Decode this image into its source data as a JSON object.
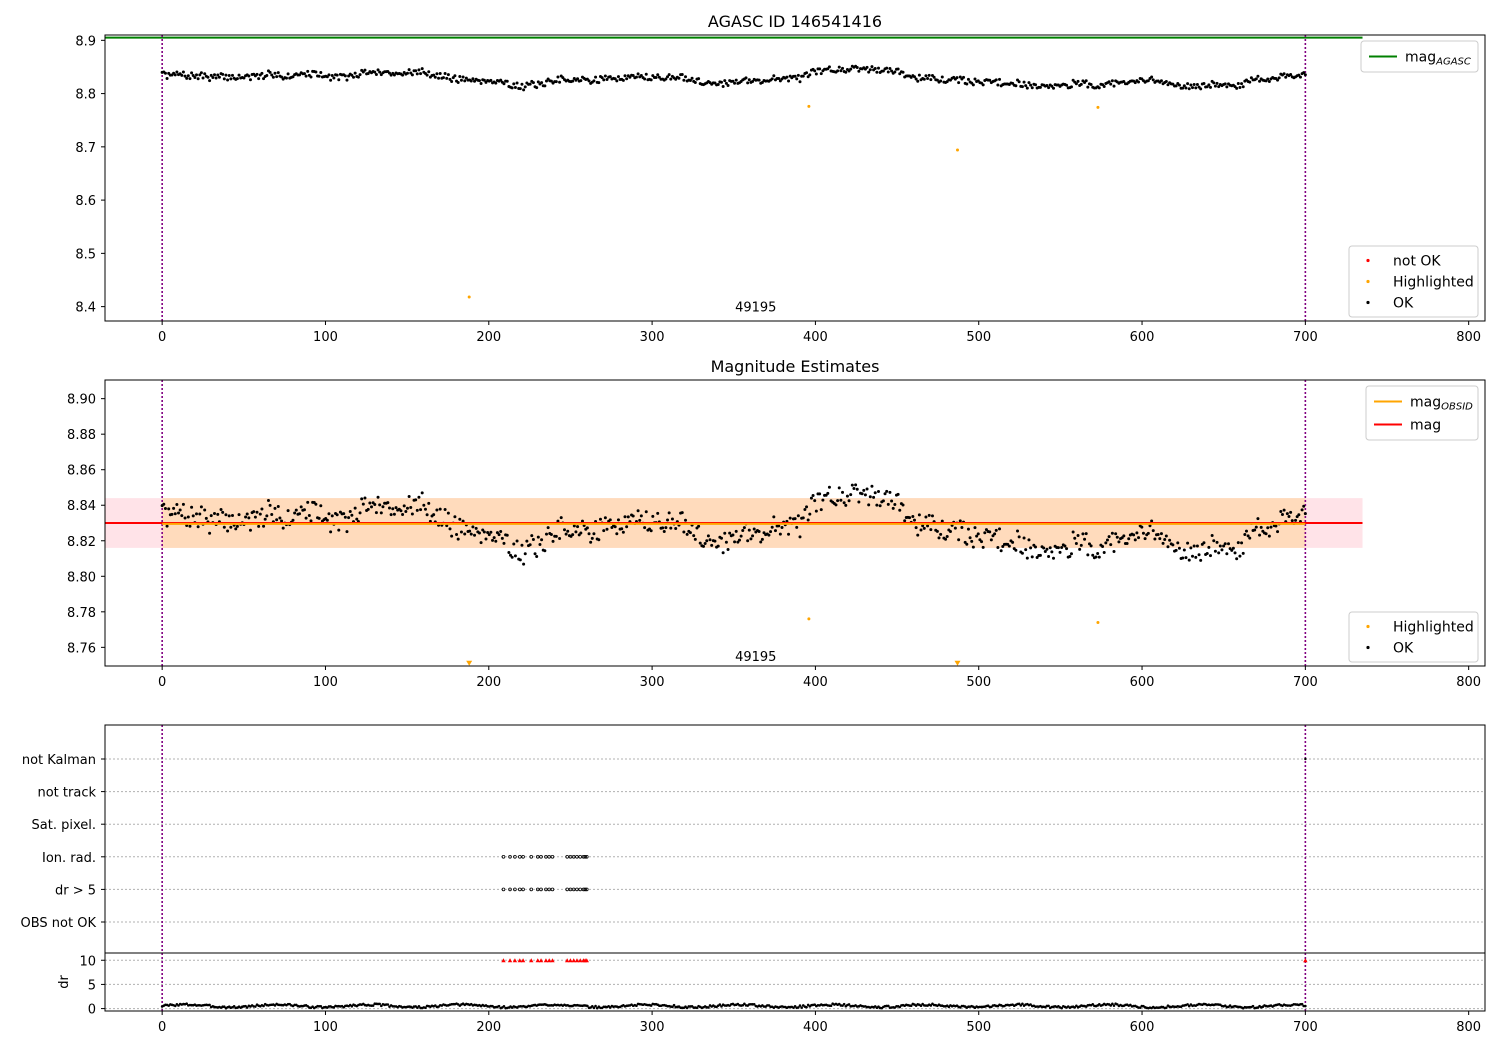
{
  "colors": {
    "ok": "#000000",
    "highlighted": "#ffa500",
    "not_ok": "#ff0000",
    "mag_agasc": "#008000",
    "mag": "#ff0000",
    "mag_obsid": "#ffa500",
    "band_mag": "#ffc0cb",
    "band_obsid": "#ffd8b0",
    "vline": "#800080",
    "hgrid": "#b0b0b0"
  },
  "chart_data": [
    {
      "type": "scatter",
      "title": "AGASC ID 146541416",
      "xlim": [
        -35,
        810
      ],
      "ylim": [
        8.373,
        8.91
      ],
      "x_ticks": [
        0,
        100,
        200,
        300,
        400,
        500,
        600,
        700,
        800
      ],
      "y_ticks": [
        8.4,
        8.5,
        8.6,
        8.7,
        8.8,
        8.9
      ],
      "annotation": {
        "text": "49195",
        "x": 350,
        "y": 8.4
      },
      "vlines": [
        0,
        700
      ],
      "hline": {
        "name": "mag_AGASC",
        "y": 8.905,
        "x_range": [
          -35,
          735
        ]
      },
      "series": [
        {
          "name": "OK",
          "x_range": [
            0,
            700
          ],
          "n": 700,
          "mean": 8.831,
          "wander": 0.022,
          "noise": 0.006,
          "seed": 7
        },
        {
          "name": "Highlighted",
          "x": [
            188,
            396,
            487,
            573
          ],
          "y": [
            8.418,
            8.776,
            8.694,
            8.774
          ]
        },
        {
          "name": "not OK",
          "x": [],
          "y": []
        }
      ],
      "legend": [
        {
          "label": "mag",
          "sub": "AGASC",
          "kind": "line",
          "color_key": "mag_agasc"
        }
      ],
      "legend2": [
        {
          "label": "not OK",
          "kind": "dot",
          "color_key": "not_ok"
        },
        {
          "label": "Highlighted",
          "kind": "dot",
          "color_key": "highlighted"
        },
        {
          "label": "OK",
          "kind": "dot",
          "color_key": "ok"
        }
      ]
    },
    {
      "type": "scatter",
      "title": "Magnitude Estimates",
      "xlim": [
        -35,
        810
      ],
      "ylim": [
        8.7495,
        8.9105
      ],
      "x_ticks": [
        0,
        100,
        200,
        300,
        400,
        500,
        600,
        700,
        800
      ],
      "y_ticks": [
        8.76,
        8.78,
        8.8,
        8.82,
        8.84,
        8.86,
        8.88,
        8.9
      ],
      "y_tick_labels": [
        "8.76",
        "8.78",
        "8.80",
        "8.82",
        "8.84",
        "8.86",
        "8.88",
        "8.90"
      ],
      "annotation": {
        "text": "49195",
        "x": 350,
        "y": 8.755
      },
      "vlines": [
        0,
        700
      ],
      "mag": {
        "y": 8.83,
        "band": [
          8.816,
          8.844
        ],
        "x_range": [
          -35,
          735
        ]
      },
      "mag_obsid": {
        "y": 8.8295,
        "band": [
          8.816,
          8.844
        ],
        "x_range": [
          0,
          700
        ]
      },
      "series": [
        {
          "name": "OK",
          "x_range": [
            0,
            700
          ],
          "n": 700,
          "mean": 8.831,
          "wander": 0.022,
          "noise": 0.006,
          "seed": 7
        },
        {
          "name": "Highlighted",
          "x": [
            396,
            573
          ],
          "y": [
            8.776,
            8.774
          ]
        },
        {
          "name": "Highlighted (below axis)",
          "x": [
            188,
            487
          ],
          "y": [
            8.7508,
            8.7508
          ]
        }
      ],
      "legend": [
        {
          "label": "mag",
          "sub": "OBSID",
          "kind": "line",
          "color_key": "mag_obsid"
        },
        {
          "label": "mag",
          "kind": "line",
          "color_key": "mag"
        }
      ],
      "legend2": [
        {
          "label": "Highlighted",
          "kind": "dot",
          "color_key": "highlighted"
        },
        {
          "label": "OK",
          "kind": "dot",
          "color_key": "ok"
        }
      ]
    },
    {
      "type": "scatter",
      "title": "",
      "xlim": [
        -35,
        810
      ],
      "categories": [
        "not Kalman",
        "not track",
        "Sat. pixel.",
        "Ion. rad.",
        "dr > 5",
        "OBS not OK"
      ],
      "flag_x": [
        209,
        213,
        216,
        219,
        221,
        226,
        230,
        232,
        235,
        237,
        239,
        248,
        250,
        252,
        254,
        256,
        258,
        259,
        260
      ],
      "flag_rows": [
        "Ion. rad.",
        "dr > 5"
      ],
      "vlines": [
        0,
        700
      ]
    },
    {
      "type": "line",
      "title": "",
      "ylabel": "dr",
      "xlim": [
        -35,
        810
      ],
      "ylim": [
        -0.5,
        11.5
      ],
      "x_ticks": [
        0,
        100,
        200,
        300,
        400,
        500,
        600,
        700,
        800
      ],
      "y_ticks": [
        0,
        5,
        10
      ],
      "clip_y": 10,
      "clipped_x": [
        209,
        213,
        216,
        219,
        221,
        226,
        230,
        232,
        235,
        237,
        239,
        248,
        250,
        252,
        254,
        256,
        258,
        259,
        260,
        700
      ],
      "series": [
        {
          "name": "dr",
          "x_range": [
            0,
            700
          ],
          "n": 700,
          "mean": 0.55,
          "amplitude": 0.45,
          "seed": 3
        }
      ],
      "vlines": [
        0,
        700
      ]
    }
  ]
}
